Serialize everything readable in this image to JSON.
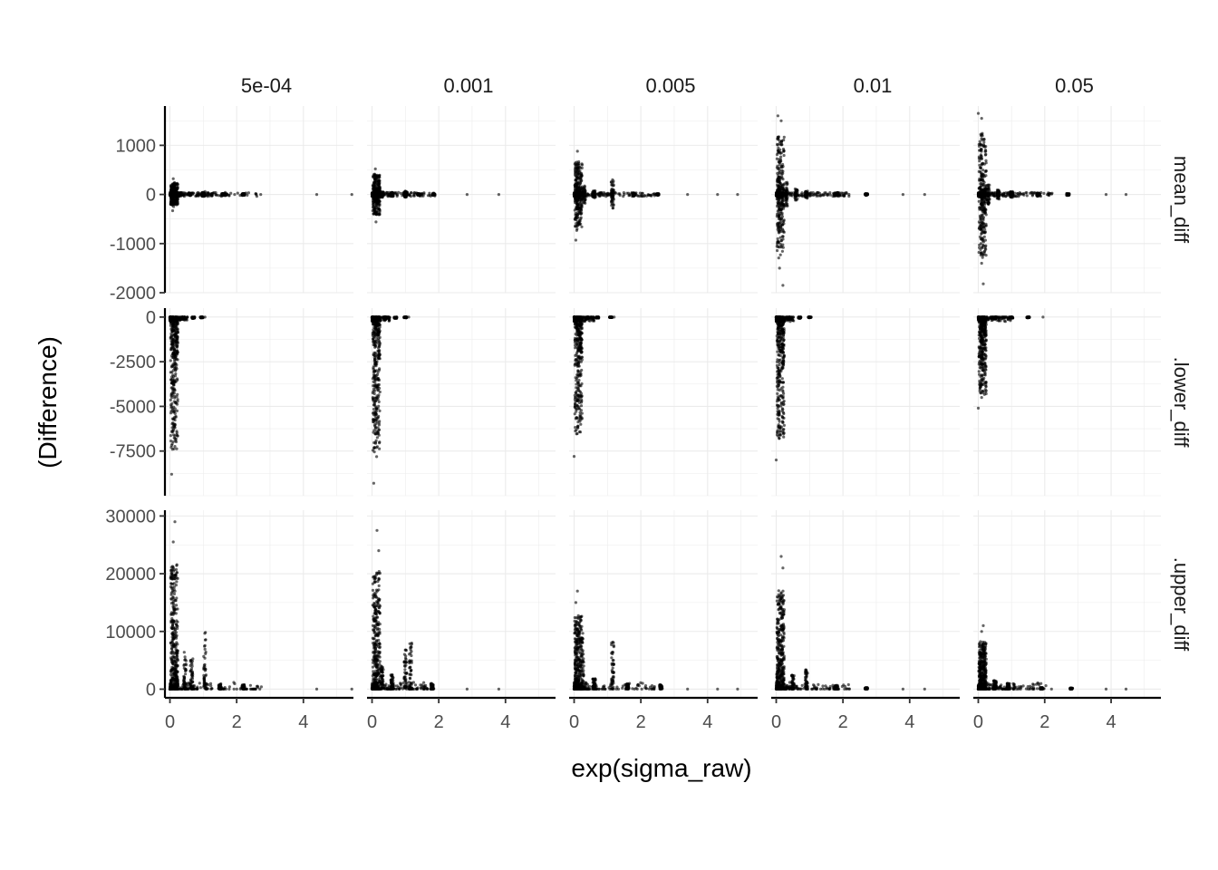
{
  "chart_data": {
    "type": "scatter",
    "title": "",
    "xlabel": "exp(sigma_raw)",
    "ylabel": "(Difference)",
    "facet_cols": [
      "5e-04",
      "0.001",
      "0.005",
      "0.01",
      "0.05"
    ],
    "facet_rows": [
      "mean_diff",
      ".lower_diff",
      ".upper_diff"
    ],
    "xlim": [
      -0.15,
      5.5
    ],
    "x_ticks": [
      0,
      2,
      4
    ],
    "x_tick_labels": [
      "0",
      "2",
      "4"
    ],
    "row_ylims": [
      [
        -2000,
        1800
      ],
      [
        -10000,
        500
      ],
      [
        -1500,
        31000
      ]
    ],
    "row_y_ticks": [
      [
        -2000,
        -1000,
        0,
        1000
      ],
      [
        -7500,
        -5000,
        -2500,
        0
      ],
      [
        0,
        10000,
        20000,
        30000
      ]
    ],
    "row_y_tick_labels": [
      [
        "-2000",
        "-1000",
        "0",
        "1000"
      ],
      [
        "-7500",
        "-5000",
        "-2500",
        "0"
      ],
      [
        "0",
        "10000",
        "20000",
        "30000"
      ]
    ],
    "grid": true,
    "point_color": "#000000",
    "point_alpha": 0.6,
    "panels": [
      {
        "row": "mean_diff",
        "col": "5e-04",
        "xmax": 5.5,
        "spread": 300,
        "outliers": [
          [
            0.1,
            320
          ],
          [
            0.08,
            -330
          ],
          [
            1.05,
            60
          ],
          [
            4.4,
            0
          ],
          [
            5.45,
            0
          ]
        ],
        "clusters": [
          [
            0.1,
            260
          ],
          [
            0.3,
            40
          ],
          [
            0.6,
            30
          ],
          [
            1.0,
            40
          ],
          [
            1.6,
            20
          ],
          [
            2.2,
            20
          ]
        ]
      },
      {
        "row": "mean_diff",
        "col": "0.001",
        "xmax": 3.85,
        "spread": 550,
        "outliers": [
          [
            0.1,
            520
          ],
          [
            0.12,
            -560
          ],
          [
            1.0,
            70
          ],
          [
            2.85,
            0
          ],
          [
            3.8,
            0
          ]
        ],
        "clusters": [
          [
            0.1,
            420
          ],
          [
            0.3,
            60
          ],
          [
            0.6,
            40
          ],
          [
            1.0,
            60
          ],
          [
            1.4,
            20
          ],
          [
            1.85,
            15
          ]
        ]
      },
      {
        "row": "mean_diff",
        "col": "0.005",
        "xmax": 4.9,
        "spread": 900,
        "outliers": [
          [
            0.1,
            880
          ],
          [
            0.05,
            -930
          ],
          [
            1.15,
            300
          ],
          [
            3.4,
            0
          ],
          [
            4.3,
            0
          ],
          [
            4.9,
            0
          ]
        ],
        "clusters": [
          [
            0.1,
            780
          ],
          [
            0.3,
            200
          ],
          [
            0.6,
            80
          ],
          [
            1.15,
            280
          ],
          [
            1.8,
            30
          ],
          [
            2.5,
            20
          ]
        ]
      },
      {
        "row": "mean_diff",
        "col": "0.01",
        "xmax": 4.45,
        "spread": 1600,
        "outliers": [
          [
            0.05,
            1600
          ],
          [
            0.15,
            1500
          ],
          [
            0.2,
            -1850
          ],
          [
            0.1,
            -1500
          ],
          [
            3.8,
            0
          ],
          [
            4.45,
            0
          ]
        ],
        "clusters": [
          [
            0.1,
            1300
          ],
          [
            0.3,
            250
          ],
          [
            0.6,
            120
          ],
          [
            0.9,
            80
          ],
          [
            1.8,
            40
          ],
          [
            2.7,
            20
          ]
        ]
      },
      {
        "row": "mean_diff",
        "col": "0.05",
        "xmax": 4.45,
        "spread": 1650,
        "outliers": [
          [
            0.0,
            1650
          ],
          [
            0.1,
            1550
          ],
          [
            0.15,
            -1820
          ],
          [
            0.1,
            -1400
          ],
          [
            3.85,
            0
          ],
          [
            4.45,
            0
          ]
        ],
        "clusters": [
          [
            0.1,
            1300
          ],
          [
            0.3,
            200
          ],
          [
            0.6,
            100
          ],
          [
            1.0,
            60
          ],
          [
            1.8,
            30
          ],
          [
            2.7,
            20
          ]
        ]
      },
      {
        "row": ".lower_diff",
        "col": "5e-04",
        "xmax": 1.05,
        "spread": 8800,
        "outliers": [
          [
            0.05,
            -8800
          ],
          [
            0.15,
            -4100
          ],
          [
            1.05,
            0
          ]
        ],
        "clusters": [
          [
            0.1,
            -6500
          ],
          [
            0.2,
            -2500
          ],
          [
            0.4,
            -150
          ],
          [
            0.7,
            -80
          ],
          [
            0.95,
            -40
          ]
        ]
      },
      {
        "row": ".lower_diff",
        "col": "0.001",
        "xmax": 1.1,
        "spread": 9300,
        "outliers": [
          [
            0.05,
            -9300
          ],
          [
            0.15,
            -3400
          ],
          [
            1.1,
            0
          ]
        ],
        "clusters": [
          [
            0.1,
            -7000
          ],
          [
            0.2,
            -2400
          ],
          [
            0.4,
            -150
          ],
          [
            0.7,
            -80
          ],
          [
            1.0,
            -40
          ]
        ]
      },
      {
        "row": ".lower_diff",
        "col": "0.005",
        "xmax": 1.2,
        "spread": 7800,
        "outliers": [
          [
            0.0,
            -7800
          ],
          [
            0.1,
            -5000
          ],
          [
            1.2,
            0
          ]
        ],
        "clusters": [
          [
            0.1,
            -5200
          ],
          [
            0.2,
            -2000
          ],
          [
            0.4,
            -120
          ],
          [
            0.7,
            -60
          ],
          [
            1.1,
            -30
          ]
        ]
      },
      {
        "row": ".lower_diff",
        "col": "0.01",
        "xmax": 1.05,
        "spread": 8000,
        "outliers": [
          [
            0.0,
            -8000
          ],
          [
            0.15,
            -4000
          ],
          [
            1.05,
            0
          ]
        ],
        "clusters": [
          [
            0.1,
            -6500
          ],
          [
            0.2,
            -3000
          ],
          [
            0.4,
            -150
          ],
          [
            0.7,
            -80
          ],
          [
            1.0,
            -40
          ]
        ]
      },
      {
        "row": ".lower_diff",
        "col": "0.05",
        "xmax": 1.95,
        "spread": 5100,
        "outliers": [
          [
            0.0,
            -5100
          ],
          [
            0.1,
            -4500
          ],
          [
            1.95,
            0
          ]
        ],
        "clusters": [
          [
            0.1,
            -4000
          ],
          [
            0.2,
            -1800
          ],
          [
            0.5,
            -120
          ],
          [
            1.0,
            -60
          ],
          [
            1.5,
            -40
          ]
        ]
      },
      {
        "row": ".upper_diff",
        "col": "5e-04",
        "xmax": 5.5,
        "spread": 29000,
        "outliers": [
          [
            0.15,
            29000
          ],
          [
            0.1,
            25500
          ],
          [
            4.4,
            0
          ],
          [
            5.45,
            0
          ]
        ],
        "clusters": [
          [
            0.1,
            14500
          ],
          [
            0.2,
            10000
          ],
          [
            0.45,
            6500
          ],
          [
            0.65,
            5500
          ],
          [
            1.05,
            10000
          ],
          [
            1.5,
            1000
          ],
          [
            2.2,
            800
          ]
        ]
      },
      {
        "row": ".upper_diff",
        "col": "0.001",
        "xmax": 3.8,
        "spread": 27500,
        "outliers": [
          [
            0.15,
            27500
          ],
          [
            0.2,
            24000
          ],
          [
            2.85,
            0
          ],
          [
            3.8,
            0
          ]
        ],
        "clusters": [
          [
            0.1,
            18000
          ],
          [
            0.3,
            4000
          ],
          [
            0.6,
            2500
          ],
          [
            1.0,
            7000
          ],
          [
            1.15,
            8000
          ],
          [
            1.8,
            1000
          ]
        ]
      },
      {
        "row": ".upper_diff",
        "col": "0.005",
        "xmax": 4.9,
        "spread": 17000,
        "outliers": [
          [
            0.1,
            17000
          ],
          [
            0.05,
            15000
          ],
          [
            3.4,
            0
          ],
          [
            4.3,
            0
          ],
          [
            4.9,
            0
          ]
        ],
        "clusters": [
          [
            0.05,
            12000
          ],
          [
            0.25,
            10000
          ],
          [
            0.6,
            2000
          ],
          [
            1.15,
            9500
          ],
          [
            1.6,
            1000
          ],
          [
            2.6,
            800
          ]
        ]
      },
      {
        "row": ".upper_diff",
        "col": "0.01",
        "xmax": 4.45,
        "spread": 23000,
        "outliers": [
          [
            0.15,
            23000
          ],
          [
            0.2,
            21000
          ],
          [
            3.8,
            0
          ],
          [
            4.45,
            0
          ]
        ],
        "clusters": [
          [
            0.05,
            13000
          ],
          [
            0.2,
            14000
          ],
          [
            0.5,
            2500
          ],
          [
            0.9,
            3500
          ],
          [
            1.8,
            700
          ],
          [
            2.7,
            300
          ]
        ]
      },
      {
        "row": ".upper_diff",
        "col": "0.05",
        "xmax": 4.45,
        "spread": 11000,
        "outliers": [
          [
            0.15,
            11000
          ],
          [
            0.1,
            10000
          ],
          [
            3.85,
            0
          ],
          [
            4.45,
            0
          ]
        ],
        "clusters": [
          [
            0.05,
            6500
          ],
          [
            0.2,
            8000
          ],
          [
            0.5,
            1500
          ],
          [
            0.9,
            1000
          ],
          [
            1.9,
            300
          ],
          [
            2.8,
            200
          ]
        ]
      }
    ]
  }
}
